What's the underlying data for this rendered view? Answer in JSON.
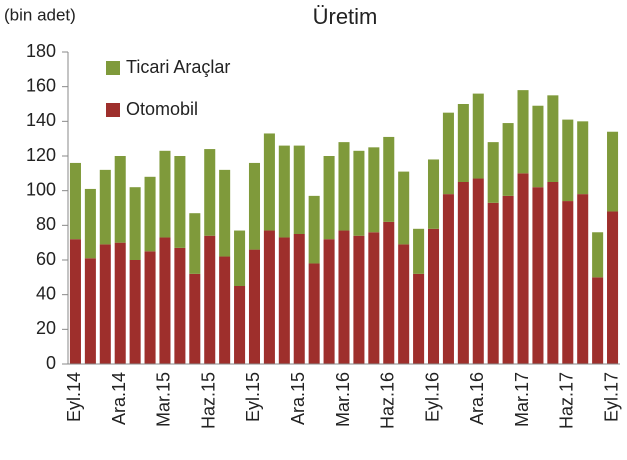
{
  "chart_data": {
    "type": "stacked_bar",
    "title": "Üretim",
    "y_label": "(bin adet)",
    "categories": [
      "Eyl.14",
      null,
      null,
      "Ara.14",
      null,
      null,
      "Mar.15",
      null,
      null,
      "Haz.15",
      null,
      null,
      "Eyl.15",
      null,
      null,
      "Ara.15",
      null,
      null,
      "Mar.16",
      null,
      null,
      "Haz.16",
      null,
      null,
      "Eyl.16",
      null,
      null,
      "Ara.16",
      null,
      null,
      "Mar.17",
      null,
      null,
      "Haz.17",
      null,
      null,
      "Eyl.17"
    ],
    "series": [
      {
        "name": "Otomobil",
        "color": "#9e2f2c",
        "values": [
          72,
          61,
          69,
          70,
          60,
          65,
          73,
          67,
          52,
          74,
          62,
          45,
          66,
          77,
          73,
          75,
          58,
          72,
          77,
          74,
          76,
          82,
          69,
          52,
          78,
          98,
          105,
          107,
          93,
          97,
          110,
          102,
          105,
          94,
          98,
          50,
          88
        ]
      },
      {
        "name": "Ticari Araçlar",
        "color": "#7f9a3b",
        "values": [
          44,
          40,
          43,
          50,
          42,
          43,
          50,
          53,
          35,
          50,
          50,
          32,
          50,
          56,
          53,
          51,
          39,
          48,
          51,
          49,
          49,
          49,
          42,
          26,
          40,
          47,
          45,
          49,
          35,
          42,
          48,
          47,
          50,
          47,
          42,
          26,
          46
        ]
      }
    ],
    "ylim": [
      0,
      180
    ],
    "yticks": [
      0,
      20,
      40,
      60,
      80,
      100,
      120,
      140,
      160,
      180
    ],
    "legend": "upper left"
  }
}
